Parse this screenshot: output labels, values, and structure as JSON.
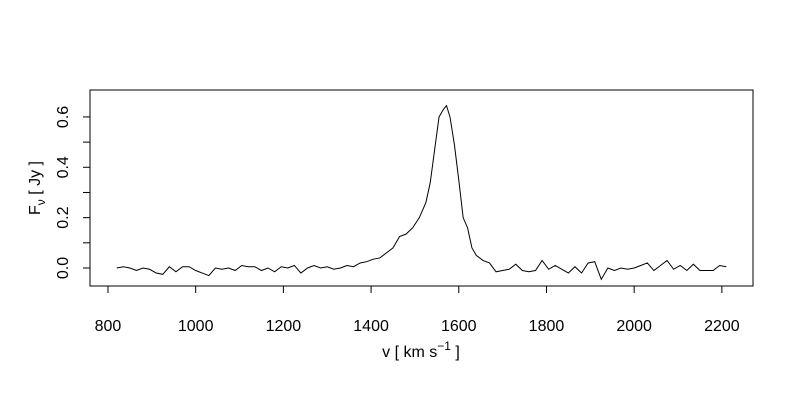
{
  "chart_data": {
    "type": "line",
    "y_label": {
      "main": "F",
      "sub": "ν",
      "after": " [ Jy ]"
    },
    "x_label": {
      "main": "v [ km s",
      "sup": "−1",
      "after": " ]"
    },
    "xlim": [
      759,
      2271
    ],
    "ylim": [
      -0.0715,
      0.707
    ],
    "xticks": [
      800,
      1000,
      1200,
      1400,
      1600,
      1800,
      2000,
      2200
    ],
    "yticks": [
      {
        "value": 0,
        "label": "0.0"
      },
      0.2,
      0.4,
      0.6
    ],
    "yminor_ticks": [
      0.1,
      0.3,
      0.5
    ],
    "grid": false,
    "series": [
      {
        "color": "#000000",
        "x": [
          820,
          835,
          850,
          865,
          880,
          895,
          910,
          925,
          940,
          955,
          970,
          985,
          1000,
          1015,
          1030,
          1045,
          1060,
          1075,
          1090,
          1105,
          1120,
          1135,
          1150,
          1165,
          1180,
          1195,
          1210,
          1225,
          1240,
          1255,
          1270,
          1285,
          1300,
          1315,
          1330,
          1345,
          1360,
          1375,
          1390,
          1405,
          1420,
          1435,
          1450,
          1465,
          1480,
          1495,
          1510,
          1525,
          1535,
          1545,
          1555,
          1565,
          1572,
          1580,
          1590,
          1600,
          1610,
          1620,
          1630,
          1640,
          1655,
          1670,
          1685,
          1700,
          1715,
          1730,
          1745,
          1760,
          1775,
          1790,
          1805,
          1820,
          1835,
          1850,
          1865,
          1880,
          1895,
          1910,
          1925,
          1940,
          1955,
          1970,
          1985,
          2000,
          2015,
          2030,
          2045,
          2060,
          2075,
          2090,
          2105,
          2120,
          2135,
          2150,
          2165,
          2180,
          2195,
          2210
        ],
        "values": [
          0,
          0.005,
          0,
          -0.01,
          0,
          -0.005,
          -0.02,
          -0.025,
          0.005,
          -0.015,
          0.005,
          0.005,
          -0.01,
          -0.02,
          -0.03,
          0,
          -0.005,
          0,
          -0.01,
          0.01,
          0.005,
          0.005,
          -0.01,
          0,
          -0.015,
          0.005,
          0,
          0.01,
          -0.02,
          0,
          0.01,
          0,
          0.005,
          -0.005,
          0,
          0.01,
          0.005,
          0.02,
          0.025,
          0.035,
          0.04,
          0.06,
          0.08,
          0.125,
          0.135,
          0.16,
          0.2,
          0.26,
          0.34,
          0.47,
          0.6,
          0.63,
          0.645,
          0.6,
          0.49,
          0.35,
          0.2,
          0.16,
          0.08,
          0.05,
          0.03,
          0.02,
          -0.015,
          -0.01,
          -0.005,
          0.015,
          -0.01,
          -0.015,
          -0.01,
          0.03,
          -0.005,
          0.01,
          -0.005,
          -0.02,
          0.005,
          -0.02,
          0.02,
          0.025,
          -0.045,
          0,
          -0.01,
          0,
          -0.005,
          0,
          0.01,
          0.02,
          -0.01,
          0.01,
          0.03,
          -0.005,
          0.01,
          -0.01,
          0.015,
          -0.01,
          -0.01,
          -0.01,
          0.01,
          0.005
        ]
      }
    ]
  }
}
